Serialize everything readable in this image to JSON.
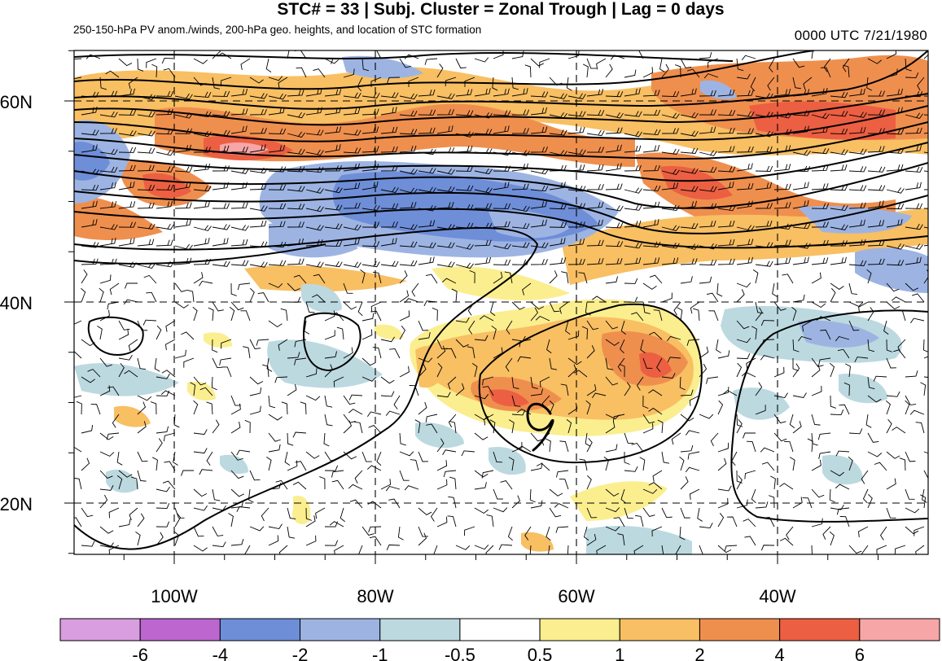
{
  "title": "STC# = 33 | Subj. Cluster = Zonal Trough | Lag = 0 days",
  "subtitle": "250-150-hPa PV anom./winds, 200-hPa geo. heights, and location of STC formation",
  "timestamp": "0000 UTC  7/21/1980",
  "axes": {
    "lat_ticks": [
      {
        "value": 60,
        "label": "60N"
      },
      {
        "value": 40,
        "label": "40N"
      },
      {
        "value": 20,
        "label": "20N"
      }
    ],
    "lon_ticks": [
      {
        "value": -100,
        "label": "100W"
      },
      {
        "value": -80,
        "label": "80W"
      },
      {
        "value": -60,
        "label": "60W"
      },
      {
        "value": -40,
        "label": "40W"
      }
    ],
    "lon_range": [
      -110,
      -25
    ],
    "lat_range": [
      15,
      65
    ],
    "grid": true
  },
  "colorbar": {
    "labels": [
      "-6",
      "-4",
      "-2",
      "-1",
      "-0.5",
      "0.5",
      "1",
      "2",
      "4",
      "6"
    ],
    "colors": [
      "#d99ee0",
      "#bd66cf",
      "#6e8ed8",
      "#9db4e3",
      "#bcd9e0",
      "#ffffff",
      "#fbee8f",
      "#f8bf63",
      "#ef8f4e",
      "#ec5f42",
      "#f6a6a7"
    ]
  },
  "marker": {
    "symbol": "tropical-storm",
    "lon": -64,
    "lat": 28
  }
}
